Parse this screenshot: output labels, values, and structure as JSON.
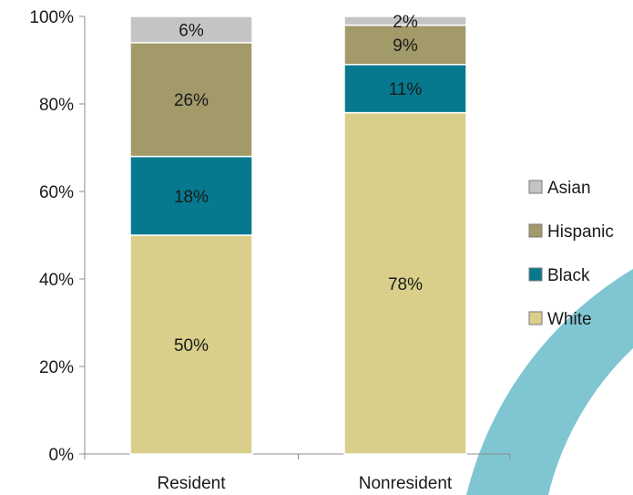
{
  "chart_data": {
    "type": "bar",
    "stacked": true,
    "categories": [
      "Resident",
      "Nonresident"
    ],
    "series": [
      {
        "name": "White",
        "values": [
          50,
          78
        ],
        "labels": [
          "50%",
          "78%"
        ],
        "color": "#d9cf8a"
      },
      {
        "name": "Black",
        "values": [
          18,
          11
        ],
        "labels": [
          "18%",
          "11%"
        ],
        "color": "#07798f"
      },
      {
        "name": "Hispanic",
        "values": [
          26,
          9
        ],
        "labels": [
          "26%",
          "9%"
        ],
        "color": "#a39a6a"
      },
      {
        "name": "Asian",
        "values": [
          6,
          2
        ],
        "labels": [
          "6%",
          "2%"
        ],
        "color": "#c4c4c4"
      }
    ],
    "legend_order": [
      "Asian",
      "Hispanic",
      "Black",
      "White"
    ],
    "ylim": [
      0,
      100
    ],
    "yticks": [
      0,
      20,
      40,
      60,
      80,
      100
    ],
    "ytick_labels": [
      "0%",
      "20%",
      "40%",
      "60%",
      "80%",
      "100%"
    ],
    "legend_position": "right",
    "grid": false,
    "title": "",
    "xlabel": "",
    "ylabel": ""
  },
  "decoration": {
    "arc_color": "#7fc6d2"
  }
}
